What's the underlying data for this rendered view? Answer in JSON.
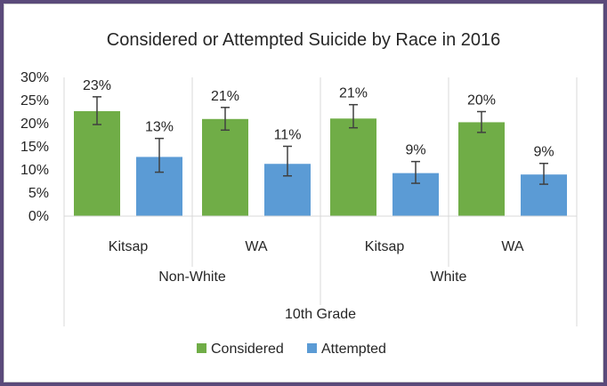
{
  "chart_data": {
    "type": "bar",
    "title": "Considered or Attempted Suicide by Race in 2016",
    "xlabel": "",
    "ylabel": "",
    "ylim": [
      0,
      30
    ],
    "yticks": [
      "0%",
      "5%",
      "10%",
      "15%",
      "20%",
      "25%",
      "30%"
    ],
    "legend_position": "bottom",
    "grid": false,
    "categories": [
      "Kitsap",
      "WA",
      "Kitsap",
      "WA"
    ],
    "groups": [
      {
        "label": "Non-White",
        "categories": [
          0,
          1
        ]
      },
      {
        "label": "White",
        "categories": [
          2,
          3
        ]
      }
    ],
    "top_group": "10th Grade",
    "series": [
      {
        "name": "Considered",
        "color": "#70ad47",
        "values": [
          22.7,
          21.0,
          21.1,
          20.3
        ],
        "labels": [
          "23%",
          "21%",
          "21%",
          "20%"
        ],
        "error_low": [
          19.8,
          18.6,
          19.1,
          18.1
        ],
        "error_high": [
          25.8,
          23.5,
          24.1,
          22.6
        ]
      },
      {
        "name": "Attempted",
        "color": "#5b9bd5",
        "values": [
          12.8,
          11.3,
          9.3,
          9.0
        ],
        "labels": [
          "13%",
          "11%",
          "9%",
          "9%"
        ],
        "error_low": [
          9.5,
          8.7,
          7.1,
          6.9
        ],
        "error_high": [
          16.8,
          15.1,
          11.8,
          11.4
        ]
      }
    ]
  }
}
